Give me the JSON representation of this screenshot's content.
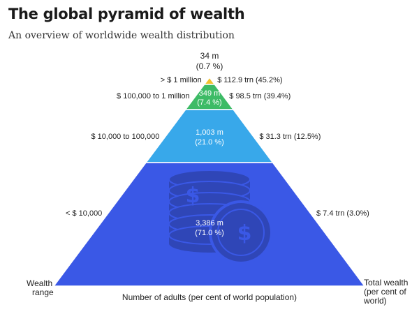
{
  "title": "The global pyramid of wealth",
  "subtitle": "An overview of worldwide wealth distribution",
  "chart_data": {
    "type": "pyramid",
    "tiers": [
      {
        "wealth_range": "> $ 1 million",
        "adults": "34 m",
        "adults_share": "(0.7 %)",
        "total_wealth": "$ 112.9 trn (45.2%)",
        "adults_millions": 34,
        "adults_pct": 0.7,
        "wealth_trn": 112.9,
        "wealth_pct": 45.2,
        "color": "#f2c12e"
      },
      {
        "wealth_range": "$ 100,000 to 1 million",
        "adults": "349 m",
        "adults_share": "(7.4 %)",
        "total_wealth": "$ 98.5 trn (39.4%)",
        "adults_millions": 349,
        "adults_pct": 7.4,
        "wealth_trn": 98.5,
        "wealth_pct": 39.4,
        "color": "#3dbb66"
      },
      {
        "wealth_range": "$ 10,000 to 100,000",
        "adults": "1,003 m",
        "adults_share": "(21.0 %)",
        "total_wealth": "$ 31.3 trn (12.5%)",
        "adults_millions": 1003,
        "adults_pct": 21.0,
        "wealth_trn": 31.3,
        "wealth_pct": 12.5,
        "color": "#38a8ea"
      },
      {
        "wealth_range": "< $ 10,000",
        "adults": "3,386 m",
        "adults_share": "(71.0 %)",
        "total_wealth": "$ 7.4 trn (3.0%)",
        "adults_millions": 3386,
        "adults_pct": 71.0,
        "wealth_trn": 7.4,
        "wealth_pct": 3.0,
        "color": "#3a58e6"
      }
    ],
    "left_axis_label": [
      "Wealth",
      "range"
    ],
    "right_axis_label": [
      "Total wealth",
      "(per cent of",
      "world)"
    ],
    "bottom_label": "Number of adults (per cent of world population)",
    "icon": "coin-stack-icon"
  }
}
